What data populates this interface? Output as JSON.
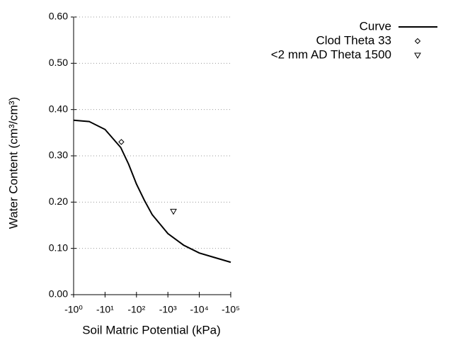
{
  "chart_data": {
    "type": "line",
    "xlabel": "Soil Matric Potential (kPa)",
    "ylabel": "Water Content (cm³/cm³)",
    "xscale": "log",
    "xlim": [
      -1,
      -100000
    ],
    "xticks": [
      {
        "value": -1,
        "label": "-10⁰"
      },
      {
        "value": -10,
        "label": "-10¹"
      },
      {
        "value": -100,
        "label": "-10²"
      },
      {
        "value": -1000,
        "label": "-10³"
      },
      {
        "value": -10000,
        "label": "-10⁴"
      },
      {
        "value": -100000,
        "label": "-10⁵"
      }
    ],
    "ylim": [
      0,
      0.6
    ],
    "yticks": [
      {
        "value": 0,
        "label": "0.00"
      },
      {
        "value": 0.1,
        "label": "0.10"
      },
      {
        "value": 0.2,
        "label": "0.20"
      },
      {
        "value": 0.3,
        "label": "0.30"
      },
      {
        "value": 0.4,
        "label": "0.40"
      },
      {
        "value": 0.5,
        "label": "0.50"
      },
      {
        "value": 0.6,
        "label": "0.60"
      }
    ],
    "grid": true,
    "legend": "top-right",
    "series": [
      {
        "name": "Curve",
        "type": "line",
        "color": "#000000",
        "x": [
          -1,
          -3.16,
          -10,
          -31.6,
          -56.2,
          -100,
          -178,
          -316,
          -1000,
          -3162,
          -10000,
          -31623,
          -100000
        ],
        "values": [
          0.377,
          0.374,
          0.357,
          0.318,
          0.282,
          0.239,
          0.204,
          0.173,
          0.132,
          0.107,
          0.09,
          0.08,
          0.07
        ]
      },
      {
        "name": "Clod Theta 33",
        "type": "scatter",
        "marker": "diamond",
        "color": "#000000",
        "x": [
          -33
        ],
        "values": [
          0.33
        ]
      },
      {
        "name": "<2 mm AD Theta 1500",
        "type": "scatter",
        "marker": "triangle-down",
        "color": "#000000",
        "x": [
          -1500
        ],
        "values": [
          0.18
        ]
      }
    ]
  }
}
